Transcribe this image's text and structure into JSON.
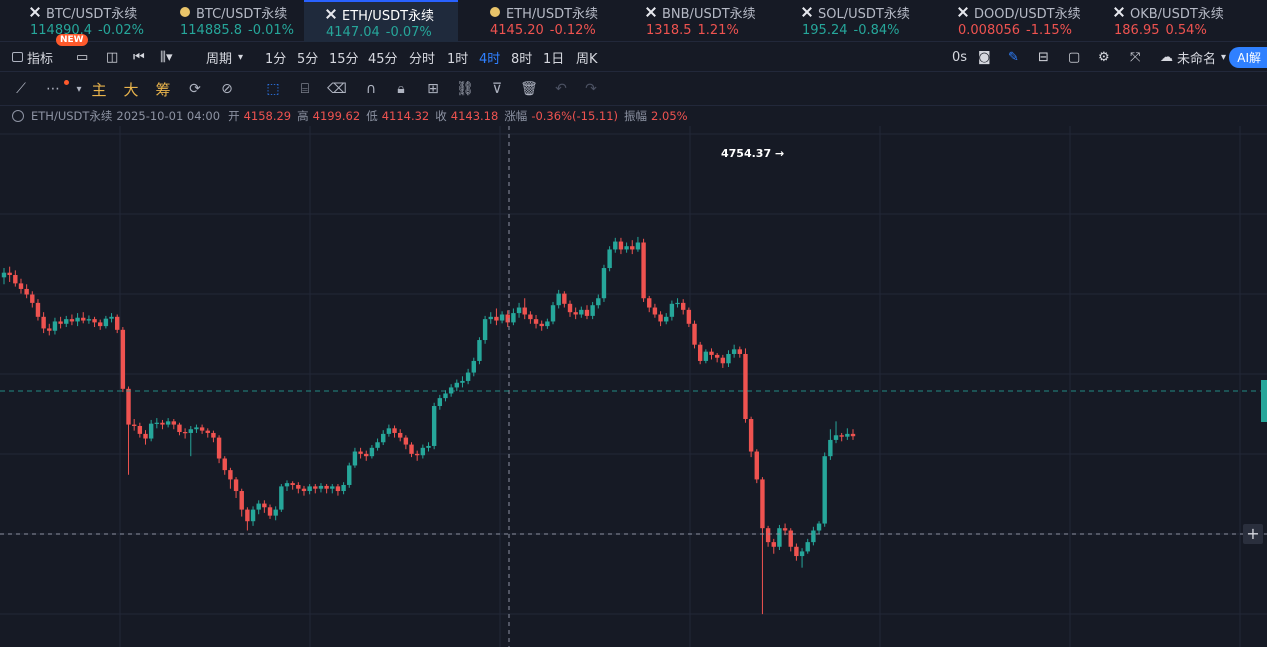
{
  "tickers": [
    {
      "name": "BTC/USDT永续",
      "price": "114890.4",
      "change": "-0.02%",
      "dir": "up",
      "icon": "close-x-icon"
    },
    {
      "name": "BTC/USDT永续",
      "price": "114885.8",
      "change": "-0.01%",
      "dir": "up",
      "icon": "coin-icon"
    },
    {
      "name": "ETH/USDT永续",
      "price": "4147.04",
      "change": "-0.07%",
      "dir": "up",
      "icon": "close-x-icon",
      "active": true
    },
    {
      "name": "ETH/USDT永续",
      "price": "4145.20",
      "change": "-0.12%",
      "dir": "down",
      "icon": "coin-icon"
    },
    {
      "name": "BNB/USDT永续",
      "price": "1318.5",
      "change": "1.21%",
      "dir": "down",
      "icon": "close-x-icon"
    },
    {
      "name": "SOL/USDT永续",
      "price": "195.24",
      "change": "-0.84%",
      "dir": "up",
      "icon": "close-x-icon"
    },
    {
      "name": "DOOD/USDT永续",
      "price": "0.008056",
      "change": "-1.15%",
      "dir": "down",
      "icon": "close-x-icon"
    },
    {
      "name": "OKB/USDT永续",
      "price": "186.95",
      "change": "0.54%",
      "dir": "down",
      "icon": "close-x-icon"
    }
  ],
  "toolbar": {
    "indicator_label": "指标",
    "new_badge": "NEW",
    "period_label": "周期",
    "timeframes": [
      "1分",
      "5分",
      "15分",
      "45分",
      "分时",
      "1时",
      "4时",
      "8时",
      "1日",
      "周K"
    ],
    "selected_timeframe": "4时",
    "countdown": "0s",
    "layout_name": "未命名",
    "ai_label": "AI解"
  },
  "drawing_tools": {
    "main_label": "主",
    "big_label": "大",
    "chips_label": "筹"
  },
  "ohlc": {
    "symbol": "ETH/USDT永续",
    "datetime": "2025-10-01 04:00",
    "open_label": "开",
    "open": "4158.29",
    "high_label": "高",
    "high": "4199.62",
    "low_label": "低",
    "low": "4114.32",
    "close_label": "收",
    "close": "4143.18",
    "change_label": "涨幅",
    "change": "-0.36%(-15.11)",
    "amp_label": "振幅",
    "amp": "2.05%"
  },
  "chart_data": {
    "type": "candlestick",
    "high_marker": "4754.37",
    "colors": {
      "up": "#26a69a",
      "down": "#ef5350",
      "grid": "#222838",
      "bg": "#161a25"
    },
    "ylim": [
      3700,
      4800
    ],
    "candles": [
      [
        4485,
        4495,
        4470,
        4505
      ],
      [
        4495,
        4490,
        4475,
        4508
      ],
      [
        4490,
        4472,
        4465,
        4500
      ],
      [
        4472,
        4460,
        4450,
        4482
      ],
      [
        4460,
        4448,
        4440,
        4470
      ],
      [
        4448,
        4430,
        4420,
        4455
      ],
      [
        4430,
        4400,
        4392,
        4438
      ],
      [
        4400,
        4375,
        4365,
        4410
      ],
      [
        4375,
        4370,
        4360,
        4385
      ],
      [
        4370,
        4390,
        4362,
        4398
      ],
      [
        4390,
        4385,
        4375,
        4400
      ],
      [
        4385,
        4395,
        4378,
        4402
      ],
      [
        4395,
        4390,
        4382,
        4405
      ],
      [
        4390,
        4398,
        4380,
        4408
      ],
      [
        4398,
        4392,
        4386,
        4410
      ],
      [
        4392,
        4395,
        4385,
        4403
      ],
      [
        4395,
        4388,
        4378,
        4400
      ],
      [
        4388,
        4380,
        4372,
        4394
      ],
      [
        4380,
        4396,
        4375,
        4402
      ],
      [
        4396,
        4400,
        4388,
        4408
      ],
      [
        4400,
        4372,
        4365,
        4405
      ],
      [
        4372,
        4245,
        4238,
        4378
      ],
      [
        4245,
        4168,
        4060,
        4250
      ],
      [
        4168,
        4165,
        4155,
        4180
      ],
      [
        4165,
        4148,
        4140,
        4172
      ],
      [
        4148,
        4138,
        4125,
        4156
      ],
      [
        4138,
        4170,
        4132,
        4178
      ],
      [
        4170,
        4172,
        4160,
        4182
      ],
      [
        4172,
        4168,
        4158,
        4178
      ],
      [
        4168,
        4175,
        4162,
        4182
      ],
      [
        4175,
        4168,
        4158,
        4180
      ],
      [
        4168,
        4152,
        4145,
        4172
      ],
      [
        4152,
        4150,
        4138,
        4160
      ],
      [
        4150,
        4158,
        4100,
        4165
      ],
      [
        4158,
        4162,
        4150,
        4168
      ],
      [
        4162,
        4155,
        4148,
        4168
      ],
      [
        4155,
        4150,
        4140,
        4160
      ],
      [
        4150,
        4140,
        4130,
        4155
      ],
      [
        4140,
        4095,
        4085,
        4145
      ],
      [
        4095,
        4070,
        4060,
        4100
      ],
      [
        4070,
        4050,
        4030,
        4075
      ],
      [
        4050,
        4025,
        4010,
        4055
      ],
      [
        4025,
        3985,
        3970,
        4030
      ],
      [
        3985,
        3960,
        3940,
        3990
      ],
      [
        3960,
        3985,
        3950,
        3992
      ],
      [
        3985,
        3998,
        3975,
        4005
      ],
      [
        3998,
        3990,
        3978,
        4005
      ],
      [
        3990,
        3972,
        3965,
        3996
      ],
      [
        3972,
        3985,
        3962,
        3992
      ],
      [
        3985,
        4035,
        3980,
        4040
      ],
      [
        4035,
        4042,
        4025,
        4048
      ],
      [
        4042,
        4038,
        4028,
        4046
      ],
      [
        4038,
        4030,
        4020,
        4044
      ],
      [
        4030,
        4025,
        4015,
        4036
      ],
      [
        4025,
        4035,
        4018,
        4040
      ],
      [
        4035,
        4030,
        4020,
        4040
      ],
      [
        4030,
        4036,
        4022,
        4042
      ],
      [
        4036,
        4030,
        4020,
        4040
      ],
      [
        4030,
        4035,
        4020,
        4040
      ],
      [
        4035,
        4025,
        4015,
        4040
      ],
      [
        4025,
        4038,
        4018,
        4044
      ],
      [
        4038,
        4080,
        4032,
        4086
      ],
      [
        4080,
        4110,
        4075,
        4118
      ],
      [
        4110,
        4105,
        4095,
        4118
      ],
      [
        4105,
        4100,
        4090,
        4112
      ],
      [
        4100,
        4118,
        4095,
        4124
      ],
      [
        4118,
        4130,
        4112,
        4138
      ],
      [
        4130,
        4148,
        4124,
        4156
      ],
      [
        4148,
        4160,
        4142,
        4168
      ],
      [
        4160,
        4150,
        4140,
        4166
      ],
      [
        4150,
        4140,
        4132,
        4158
      ],
      [
        4140,
        4125,
        4115,
        4145
      ],
      [
        4125,
        4105,
        4098,
        4130
      ],
      [
        4105,
        4102,
        4090,
        4112
      ],
      [
        4102,
        4118,
        4095,
        4125
      ],
      [
        4118,
        4122,
        4110,
        4130
      ],
      [
        4122,
        4208,
        4115,
        4215
      ],
      [
        4208,
        4225,
        4200,
        4232
      ],
      [
        4225,
        4235,
        4218,
        4242
      ],
      [
        4235,
        4248,
        4228,
        4255
      ],
      [
        4248,
        4258,
        4240,
        4265
      ],
      [
        4258,
        4262,
        4248,
        4272
      ],
      [
        4262,
        4280,
        4255,
        4288
      ],
      [
        4280,
        4305,
        4272,
        4312
      ],
      [
        4305,
        4350,
        4298,
        4356
      ],
      [
        4350,
        4395,
        4342,
        4402
      ],
      [
        4395,
        4400,
        4385,
        4410
      ],
      [
        4400,
        4392,
        4382,
        4418
      ],
      [
        4392,
        4405,
        4386,
        4412
      ],
      [
        4405,
        4388,
        4378,
        4414
      ],
      [
        4388,
        4408,
        4382,
        4418
      ],
      [
        4408,
        4420,
        4398,
        4430
      ],
      [
        4420,
        4405,
        4395,
        4440
      ],
      [
        4405,
        4395,
        4385,
        4412
      ],
      [
        4395,
        4385,
        4375,
        4404
      ],
      [
        4385,
        4380,
        4370,
        4392
      ],
      [
        4380,
        4390,
        4374,
        4396
      ],
      [
        4390,
        4425,
        4384,
        4432
      ],
      [
        4425,
        4450,
        4418,
        4458
      ],
      [
        4450,
        4428,
        4420,
        4455
      ],
      [
        4428,
        4410,
        4400,
        4435
      ],
      [
        4410,
        4405,
        4395,
        4420
      ],
      [
        4405,
        4415,
        4398,
        4422
      ],
      [
        4415,
        4402,
        4395,
        4425
      ],
      [
        4402,
        4425,
        4395,
        4432
      ],
      [
        4425,
        4440,
        4418,
        4448
      ],
      [
        4440,
        4505,
        4432,
        4512
      ],
      [
        4505,
        4545,
        4498,
        4552
      ],
      [
        4545,
        4562,
        4538,
        4570
      ],
      [
        4562,
        4545,
        4535,
        4570
      ],
      [
        4545,
        4552,
        4538,
        4560
      ],
      [
        4552,
        4545,
        4535,
        4565
      ],
      [
        4545,
        4560,
        4540,
        4572
      ],
      [
        4560,
        4440,
        4432,
        4568
      ],
      [
        4440,
        4420,
        4410,
        4445
      ],
      [
        4420,
        4405,
        4398,
        4428
      ],
      [
        4405,
        4390,
        4380,
        4412
      ],
      [
        4390,
        4400,
        4384,
        4408
      ],
      [
        4400,
        4428,
        4392,
        4435
      ],
      [
        4428,
        4430,
        4420,
        4440
      ],
      [
        4430,
        4415,
        4405,
        4438
      ],
      [
        4415,
        4385,
        4378,
        4420
      ],
      [
        4385,
        4340,
        4332,
        4392
      ],
      [
        4340,
        4305,
        4298,
        4346
      ],
      [
        4305,
        4325,
        4300,
        4330
      ],
      [
        4325,
        4318,
        4308,
        4332
      ],
      [
        4318,
        4312,
        4302,
        4322
      ],
      [
        4312,
        4300,
        4290,
        4318
      ],
      [
        4300,
        4320,
        4292,
        4328
      ],
      [
        4320,
        4330,
        4312,
        4340
      ],
      [
        4330,
        4320,
        4312,
        4336
      ],
      [
        4320,
        4180,
        4172,
        4332
      ],
      [
        4180,
        4110,
        4098,
        4185
      ],
      [
        4110,
        4050,
        4042,
        4115
      ],
      [
        4050,
        3945,
        3760,
        4055
      ],
      [
        3945,
        3915,
        3905,
        3950
      ],
      [
        3915,
        3905,
        3890,
        3922
      ],
      [
        3905,
        3945,
        3898,
        3952
      ],
      [
        3945,
        3940,
        3930,
        3955
      ],
      [
        3940,
        3905,
        3895,
        3945
      ],
      [
        3905,
        3885,
        3875,
        3912
      ],
      [
        3885,
        3895,
        3860,
        3902
      ],
      [
        3895,
        3915,
        3890,
        3922
      ],
      [
        3915,
        3940,
        3908,
        3948
      ],
      [
        3940,
        3955,
        3932,
        3960
      ],
      [
        3955,
        4100,
        3948,
        4108
      ],
      [
        4100,
        4135,
        4092,
        4158
      ],
      [
        4135,
        4145,
        4128,
        4175
      ],
      [
        4145,
        4142,
        4132,
        4150
      ],
      [
        4142,
        4148,
        4135,
        4160
      ],
      [
        4148,
        4143,
        4135,
        4158
      ]
    ]
  }
}
